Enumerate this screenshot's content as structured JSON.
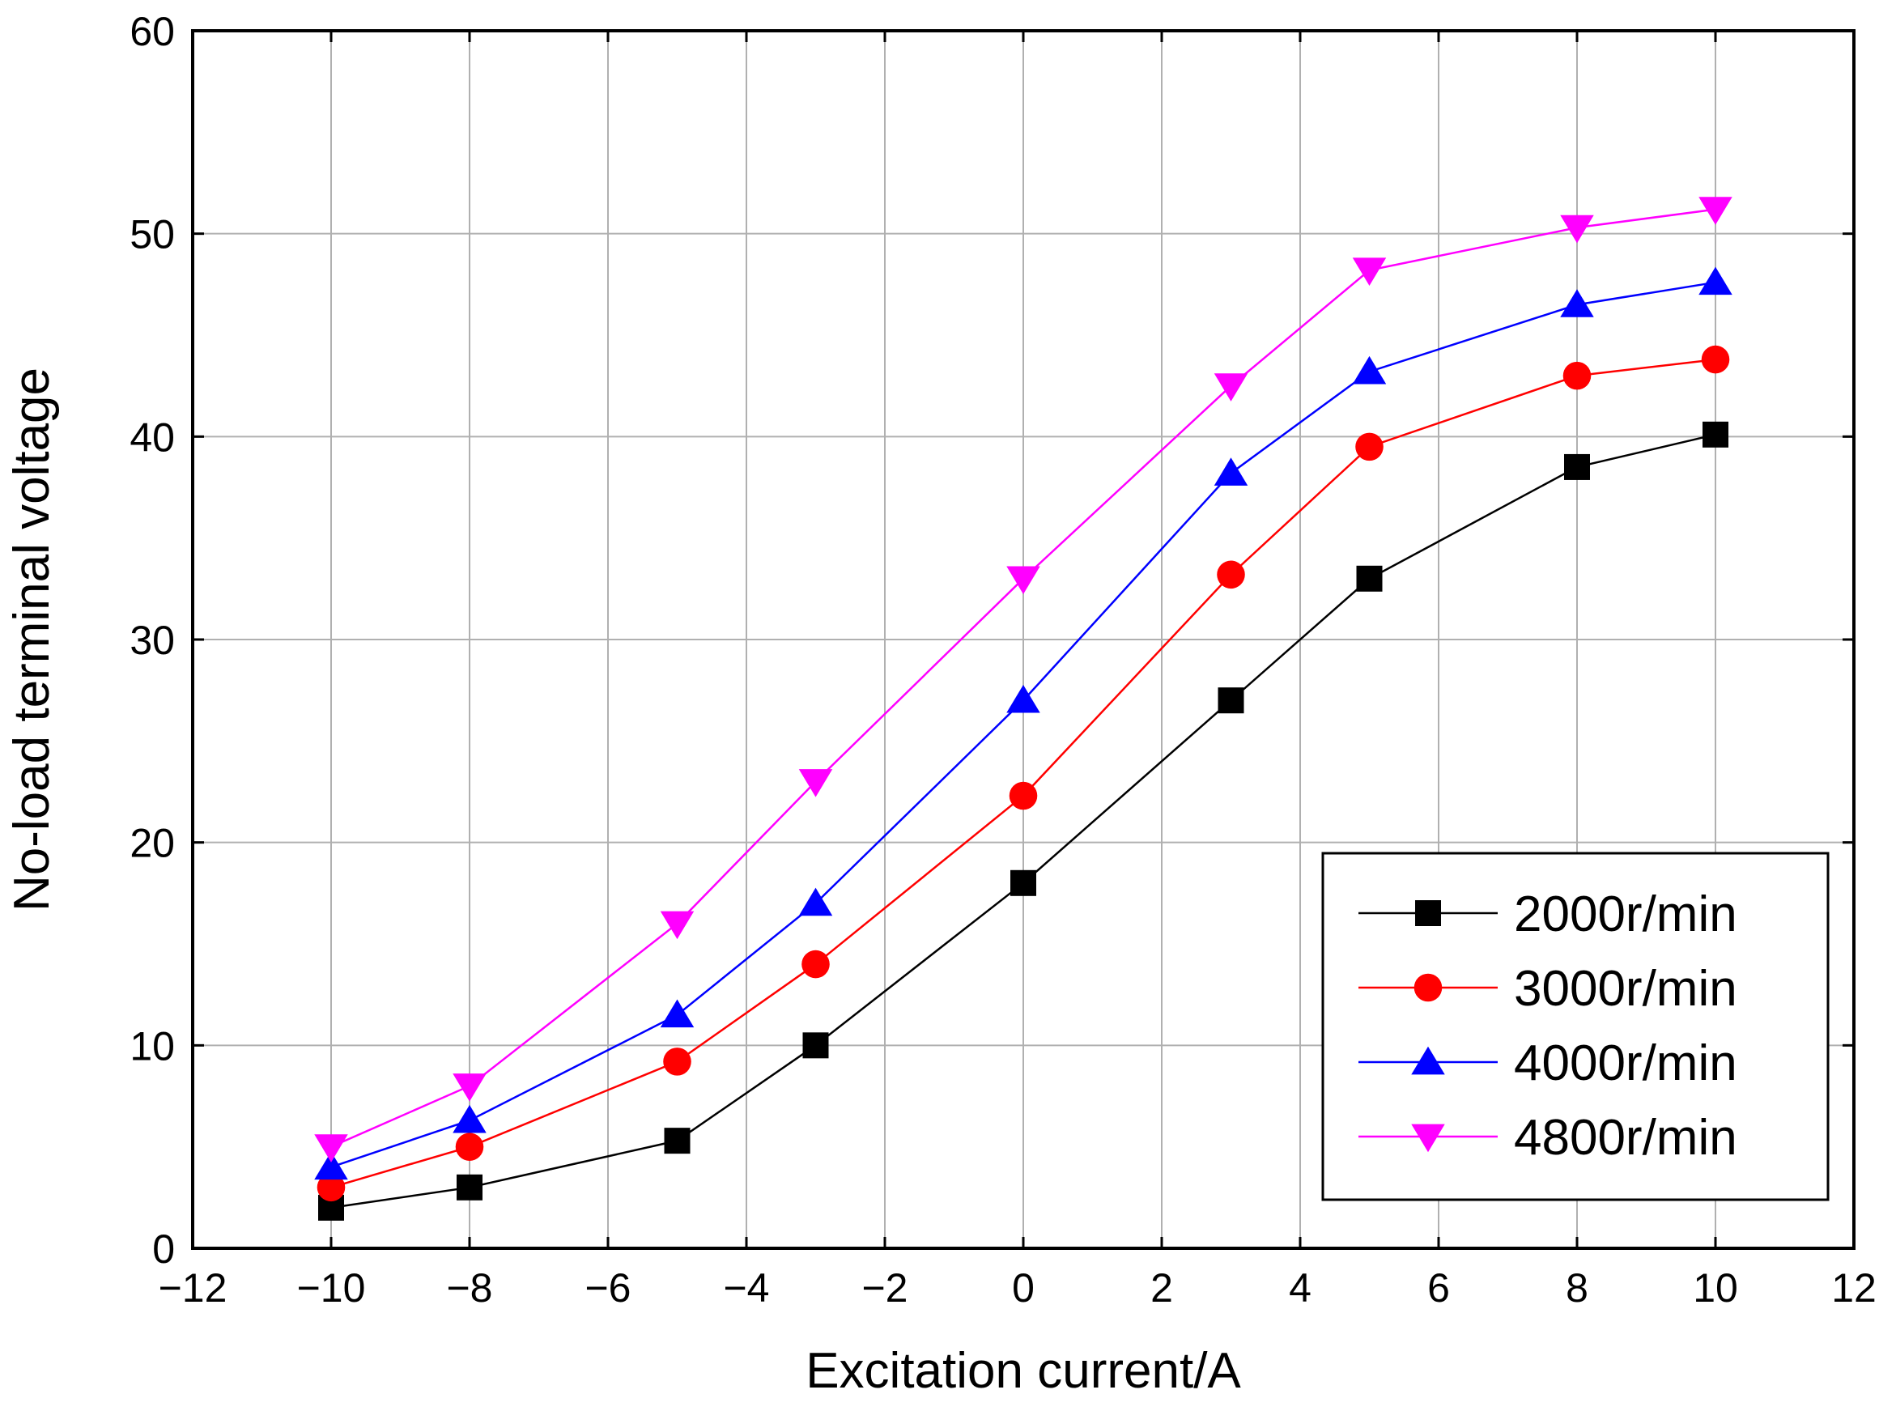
{
  "chart_data": {
    "type": "line",
    "title": "",
    "xlabel": "Excitation current/A",
    "ylabel": "No-load terminal voltage",
    "xlim": [
      -12,
      12
    ],
    "ylim": [
      0,
      60
    ],
    "xticks": [
      -12,
      -10,
      -8,
      -6,
      -4,
      -2,
      0,
      2,
      4,
      6,
      8,
      10,
      12
    ],
    "yticks": [
      0,
      10,
      20,
      30,
      40,
      50,
      60
    ],
    "xtick_labels": [
      "−12",
      "−10",
      "−8",
      "−6",
      "−4",
      "−2",
      "0",
      "2",
      "4",
      "6",
      "8",
      "10",
      "12"
    ],
    "ytick_labels": [
      "0",
      "10",
      "20",
      "30",
      "40",
      "50",
      "60"
    ],
    "grid": true,
    "legend_position": "bottom-right",
    "x": [
      -10,
      -8,
      -5,
      -3,
      0,
      3,
      5,
      8,
      10
    ],
    "series": [
      {
        "name": "2000r/min",
        "color": "#000000",
        "marker": "square",
        "values": [
          2.0,
          3.0,
          5.3,
          10.0,
          18.0,
          27.0,
          33.0,
          38.5,
          40.1
        ]
      },
      {
        "name": "3000r/min",
        "color": "#ff0000",
        "marker": "circle",
        "values": [
          3.0,
          5.0,
          9.2,
          14.0,
          22.3,
          33.2,
          39.5,
          43.0,
          43.8
        ]
      },
      {
        "name": "4000r/min",
        "color": "#0000ff",
        "marker": "triangle-up",
        "values": [
          4.0,
          6.3,
          11.5,
          17.0,
          27.0,
          38.2,
          43.2,
          46.5,
          47.6
        ]
      },
      {
        "name": "4800r/min",
        "color": "#ff00ff",
        "marker": "triangle-down",
        "values": [
          5.0,
          8.0,
          16.0,
          23.0,
          33.0,
          42.5,
          48.2,
          50.3,
          51.2
        ]
      }
    ]
  }
}
